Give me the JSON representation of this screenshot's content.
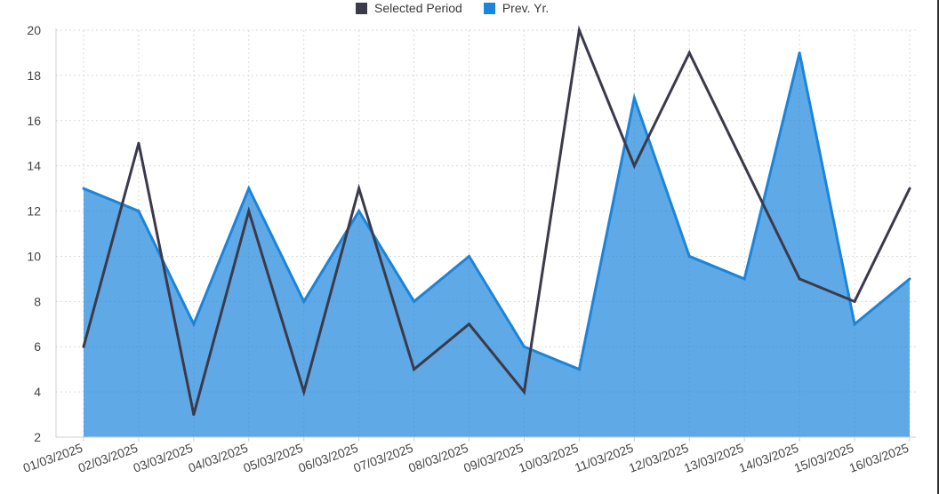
{
  "colors": {
    "selected_period": "#3a3a4a",
    "prev_year": "#1b84db",
    "prev_year_fill": "#1b84db",
    "grid": "#d9d9d9",
    "axis_text": "#444444"
  },
  "legend": [
    {
      "label": "Selected Period",
      "color": "#3a3a4a"
    },
    {
      "label": "Prev. Yr.",
      "color": "#1b84db"
    }
  ],
  "chart_data": {
    "type": "line",
    "title": "",
    "xlabel": "",
    "ylabel": "",
    "ylim": [
      2,
      20
    ],
    "yticks": [
      2,
      4,
      6,
      8,
      10,
      12,
      14,
      16,
      18,
      20
    ],
    "grid": true,
    "legend_position": "top-center",
    "categories": [
      "01/03/2025",
      "02/03/2025",
      "03/03/2025",
      "04/03/2025",
      "05/03/2025",
      "06/03/2025",
      "07/03/2025",
      "08/03/2025",
      "09/03/2025",
      "10/03/2025",
      "11/03/2025",
      "12/03/2025",
      "13/03/2025",
      "14/03/2025",
      "15/03/2025",
      "16/03/2025"
    ],
    "series": [
      {
        "name": "Selected Period",
        "kind": "line",
        "values": [
          6,
          15,
          3,
          12,
          4,
          13,
          5,
          7,
          4,
          20,
          14,
          19,
          14,
          9,
          8,
          13
        ]
      },
      {
        "name": "Prev. Yr.",
        "kind": "area",
        "values": [
          13,
          12,
          7,
          13,
          8,
          12,
          8,
          10,
          6,
          5,
          17,
          10,
          9,
          19,
          7,
          9
        ]
      }
    ]
  }
}
